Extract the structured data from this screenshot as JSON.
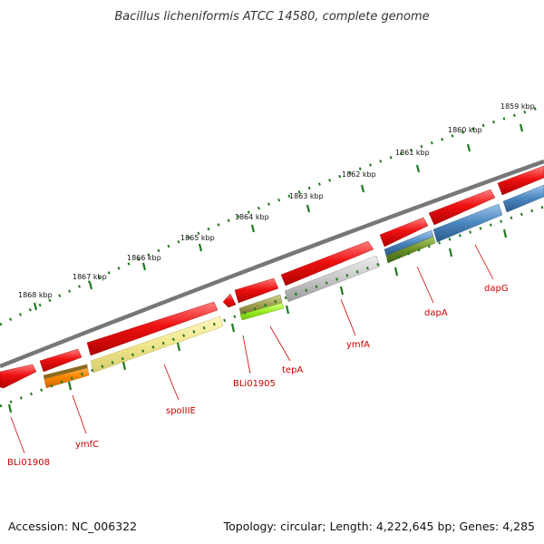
{
  "title": "Bacillus licheniformis ATCC 14580, complete genome",
  "footer": {
    "accession": "Accession: NC_006322",
    "topology": "Topology: circular; Length: 4,222,645 bp; Genes: 4,285"
  },
  "scale_labels": [
    "1868 kbp",
    "1867 kbp",
    "1866 kbp",
    "1865 kbp",
    "1864 kbp",
    "1863 kbp",
    "1862 kbp",
    "1861 kbp",
    "1860 kbp",
    "1859 kbp"
  ],
  "gene_labels": [
    "BLi01908",
    "ymfC",
    "spoIIIE",
    "BLi01905",
    "tepA",
    "ymfA",
    "dapA",
    "dapG"
  ],
  "colors": {
    "backbone": "#7a7a7a",
    "ticks": "#1e7a1e",
    "label": "#cc0000",
    "cds_forward": "#ee1111",
    "gene_orange": "#ff8800",
    "gene_khaki": "#f0e68c",
    "gene_olive": "#9a9a40",
    "gene_lime": "#9aee22",
    "gene_grey": "#c8c8c8",
    "gene_steelblue": "#4a86be",
    "gene_darkolive": "#6b8e23"
  }
}
